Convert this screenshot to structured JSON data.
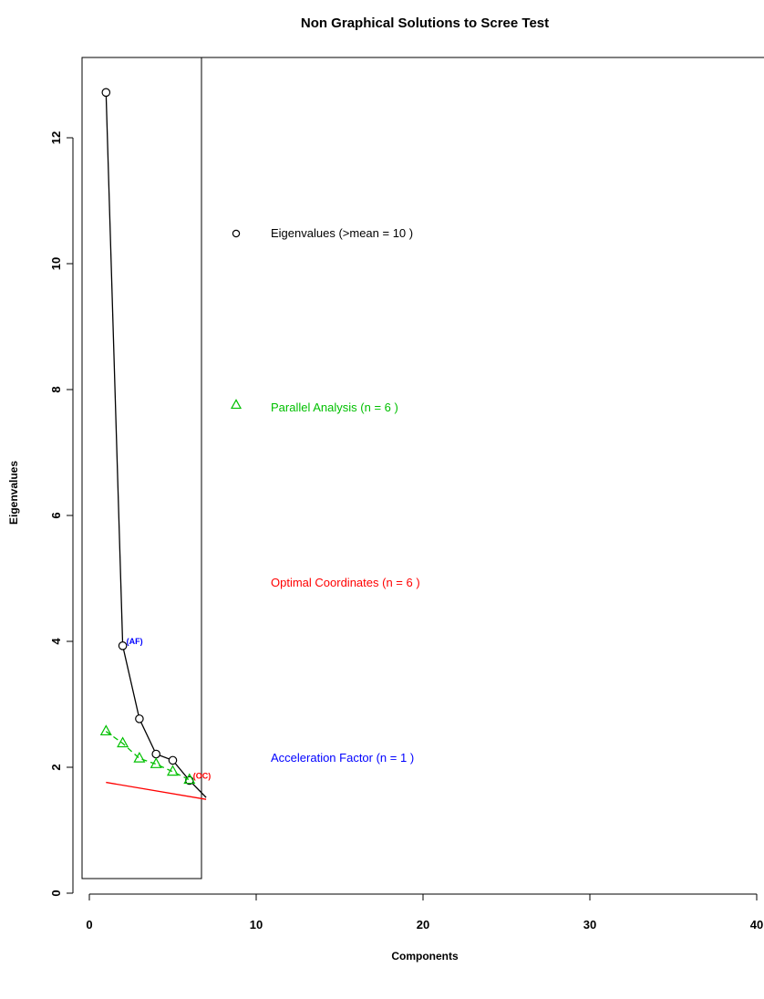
{
  "chart_data": {
    "type": "line",
    "title": "Non Graphical Solutions to Scree Test",
    "xlabel": "Components",
    "ylabel": "Eigenvalues",
    "x_ticks": [
      0,
      10,
      20,
      30,
      40
    ],
    "y_ticks": [
      0,
      2,
      4,
      6,
      8,
      10,
      12
    ],
    "grid": false,
    "series": [
      {
        "key": "eigen",
        "marker": "circle",
        "color": "#000000",
        "x": [
          1,
          2,
          3,
          4,
          5,
          6,
          7
        ],
        "y": [
          12.72,
          3.93,
          2.77,
          2.21,
          2.11,
          1.79,
          1.52
        ]
      },
      {
        "key": "parallel",
        "marker": "triangle",
        "color": "#00c000",
        "x": [
          1,
          2,
          3,
          4,
          5,
          6
        ],
        "y": [
          2.57,
          2.38,
          2.14,
          2.05,
          1.93,
          1.8
        ]
      },
      {
        "key": "optimal",
        "marker": "none",
        "color": "#ff0000",
        "x": [
          1,
          7
        ],
        "y": [
          1.76,
          1.49
        ]
      }
    ],
    "point_labels": [
      {
        "text": "(AF)",
        "color": "#0000ff",
        "x": 2,
        "y": 3.93
      },
      {
        "text": "(OC)",
        "color": "#ff0000",
        "x": 6,
        "y": 1.79
      }
    ],
    "legend": {
      "position": "inside-right",
      "entries": [
        {
          "text": "Eigenvalues (>mean  =  10 )",
          "color": "#000000",
          "marker": "circle"
        },
        {
          "text": "Parallel Analysis (n =  6 )",
          "color": "#00c000",
          "marker": "triangle"
        },
        {
          "text": "Optimal Coordinates (n =  6 )",
          "color": "#ff0000",
          "marker": "none"
        },
        {
          "text": "Acceleration Factor (n =  1 )",
          "color": "#0000ff",
          "marker": "none"
        }
      ]
    }
  }
}
